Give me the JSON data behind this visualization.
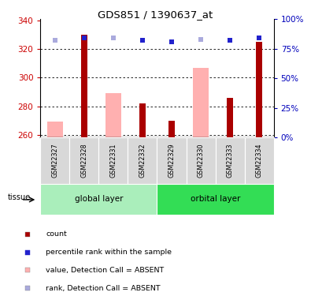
{
  "title": "GDS851 / 1390637_at",
  "samples": [
    "GSM22327",
    "GSM22328",
    "GSM22331",
    "GSM22332",
    "GSM22329",
    "GSM22330",
    "GSM22333",
    "GSM22334"
  ],
  "group_labels": [
    "global layer",
    "orbital layer"
  ],
  "tissue_label": "tissue",
  "red_bars": [
    null,
    330,
    null,
    282,
    270,
    null,
    286,
    325
  ],
  "pink_bars": [
    269,
    null,
    289,
    null,
    null,
    307,
    null,
    null
  ],
  "blue_squares": [
    null,
    328,
    null,
    326,
    325,
    null,
    326,
    328
  ],
  "light_blue_squares": [
    326,
    null,
    328,
    null,
    null,
    327,
    null,
    null
  ],
  "ymin": 258,
  "ymax": 341,
  "yticks": [
    260,
    280,
    300,
    320,
    340
  ],
  "y2ticks": [
    0,
    25,
    50,
    75,
    100
  ],
  "y2labels": [
    "0%",
    "25%",
    "50%",
    "75%",
    "100%"
  ],
  "red_color": "#AA0000",
  "pink_color": "#FFB0B0",
  "blue_color": "#2222CC",
  "light_blue_color": "#AAAADD",
  "group1_color": "#AAEEBB",
  "group2_color": "#33DD55",
  "tick_label_color": "#CC0000",
  "right_tick_color": "#0000BB",
  "legend_items": [
    {
      "label": "count",
      "color": "#AA0000"
    },
    {
      "label": "percentile rank within the sample",
      "color": "#2222CC"
    },
    {
      "label": "value, Detection Call = ABSENT",
      "color": "#FFB0B0"
    },
    {
      "label": "rank, Detection Call = ABSENT",
      "color": "#AAAADD"
    }
  ]
}
